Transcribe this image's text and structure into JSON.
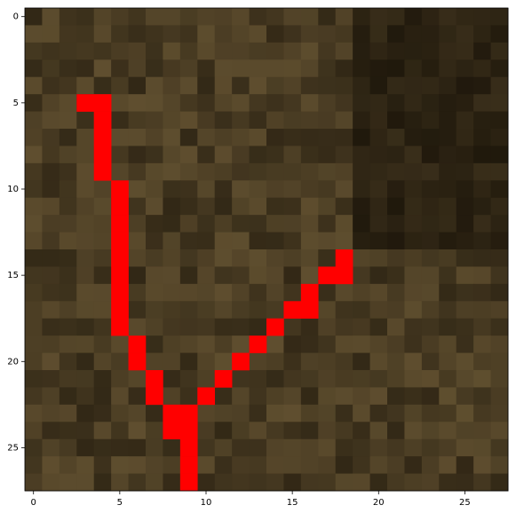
{
  "chart_data": {
    "type": "image",
    "color": "#ff0000",
    "x": [
      3,
      4,
      4,
      4,
      4,
      4,
      5,
      5,
      5,
      5,
      5,
      5,
      5,
      5,
      5,
      14,
      6,
      13,
      6,
      12,
      7,
      11,
      7,
      10,
      8,
      9,
      8,
      9,
      9,
      9,
      9,
      18,
      17,
      18,
      16,
      15,
      16
    ],
    "y": [
      5,
      5,
      6,
      7,
      8,
      9,
      10,
      11,
      12,
      13,
      14,
      15,
      16,
      17,
      18,
      18,
      19,
      19,
      20,
      20,
      21,
      21,
      22,
      22,
      23,
      23,
      24,
      24,
      25,
      26,
      27,
      14,
      15,
      15,
      16,
      17,
      17
    ],
    "xlim": [
      -0.5,
      27.5
    ],
    "ylim": [
      27.5,
      -0.5
    ],
    "xticks": [
      0,
      5,
      10,
      15,
      20,
      25
    ],
    "yticks": [
      0,
      5,
      10,
      15,
      20,
      25
    ]
  }
}
